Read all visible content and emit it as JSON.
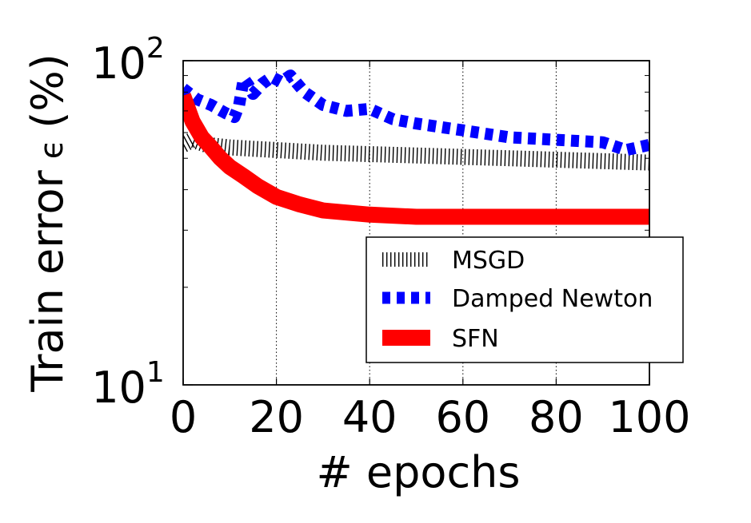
{
  "chart_data": {
    "type": "line",
    "xlabel": "# epochs",
    "ylabel_main": "Train error",
    "ylabel_symbol": "ϵ",
    "ylabel_unit": "(%)",
    "xlim": [
      0,
      100
    ],
    "ylim": [
      10,
      100
    ],
    "yscale": "log",
    "x_ticks": [
      0,
      20,
      40,
      60,
      80,
      100
    ],
    "x_tick_labels": [
      "0",
      "20",
      "40",
      "60",
      "80",
      "100"
    ],
    "y_tick_labels": [
      {
        "base": "10",
        "exp": "2",
        "value": 100
      },
      {
        "base": "10",
        "exp": "1",
        "value": 10
      }
    ],
    "grid": "vertical-dotted",
    "legend_position": "lower-right",
    "series": [
      {
        "name": "MSGD",
        "color": "#000000",
        "style": "hatched",
        "x": [
          0,
          2,
          5,
          10,
          15,
          20,
          30,
          40,
          50,
          60,
          70,
          80,
          90,
          100
        ],
        "y": [
          55,
          57,
          55,
          54,
          53.5,
          53,
          52,
          51.5,
          51,
          50.5,
          50,
          49.5,
          49,
          48.5
        ]
      },
      {
        "name": "Damped Newton",
        "color": "#0000ff",
        "style": "dashed",
        "x": [
          0,
          3,
          6,
          9,
          11,
          12,
          13,
          14,
          15,
          17,
          19,
          21,
          23,
          26,
          30,
          35,
          40,
          45,
          50,
          60,
          70,
          80,
          90,
          95,
          100
        ],
        "y": [
          82,
          76,
          73,
          69,
          67,
          73,
          88,
          84,
          79,
          85,
          89,
          86,
          90,
          80,
          73,
          70,
          71,
          66,
          64,
          61,
          58,
          57,
          56,
          53,
          55
        ]
      },
      {
        "name": "SFN",
        "color": "#ff0000",
        "style": "solid",
        "x": [
          0,
          2,
          4,
          6,
          8,
          10,
          13,
          16,
          20,
          25,
          30,
          35,
          40,
          50,
          60,
          70,
          80,
          90,
          100
        ],
        "y": [
          78,
          65,
          58,
          54,
          50,
          47,
          44,
          41,
          38,
          36,
          34.5,
          34,
          33.5,
          33,
          33,
          33,
          33,
          33,
          33
        ]
      }
    ]
  }
}
